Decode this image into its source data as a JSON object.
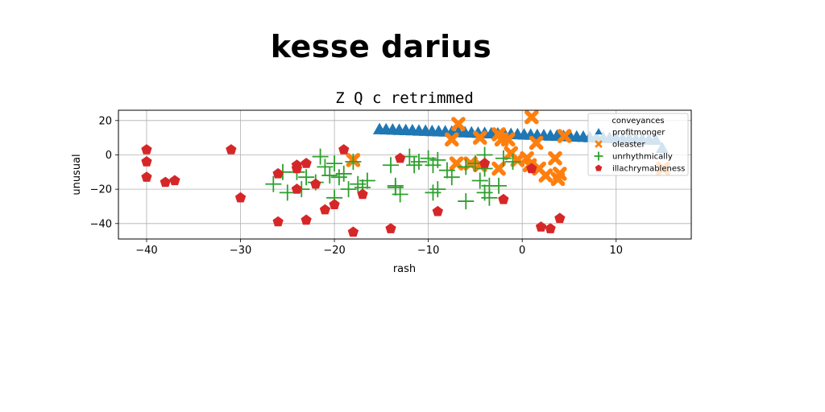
{
  "suptitle": "kesse darius",
  "chart_data": {
    "type": "scatter",
    "title": "Z Q c retrimmed",
    "xlabel": "rash",
    "ylabel": "unusual",
    "xlim": [
      -43,
      18
    ],
    "ylim": [
      -49,
      26
    ],
    "xticks": [
      -40,
      -30,
      -20,
      -10,
      0,
      10
    ],
    "yticks": [
      -40,
      -20,
      0,
      20
    ],
    "grid": true,
    "legend_title": "conveyances",
    "legend_position": "top-right",
    "series": [
      {
        "name": "profitmonger",
        "marker": "triangle",
        "color": "#1f77b4",
        "points": [
          [
            -15.2,
            14.5
          ],
          [
            -14.5,
            14.4
          ],
          [
            -13.8,
            14.3
          ],
          [
            -13.1,
            14.1
          ],
          [
            -12.4,
            14.0
          ],
          [
            -11.7,
            13.9
          ],
          [
            -11.0,
            13.7
          ],
          [
            -10.3,
            13.6
          ],
          [
            -9.6,
            13.4
          ],
          [
            -8.9,
            13.3
          ],
          [
            -8.2,
            13.2
          ],
          [
            -7.5,
            13.0
          ],
          [
            -6.8,
            12.9
          ],
          [
            -6.1,
            12.7
          ],
          [
            -5.4,
            12.6
          ],
          [
            -4.7,
            12.4
          ],
          [
            -4.0,
            12.3
          ],
          [
            -3.3,
            12.1
          ],
          [
            -2.6,
            12.0
          ],
          [
            -1.9,
            11.9
          ],
          [
            -1.2,
            11.7
          ],
          [
            -0.5,
            11.6
          ],
          [
            0.2,
            11.4
          ],
          [
            0.9,
            11.3
          ],
          [
            1.6,
            11.1
          ],
          [
            2.3,
            11.0
          ],
          [
            3.0,
            10.8
          ],
          [
            3.7,
            10.7
          ],
          [
            4.4,
            10.5
          ],
          [
            5.1,
            10.4
          ],
          [
            5.8,
            10.2
          ],
          [
            6.5,
            10.1
          ],
          [
            7.2,
            9.9
          ],
          [
            7.9,
            9.7
          ],
          [
            8.6,
            9.6
          ],
          [
            9.3,
            9.4
          ],
          [
            10.0,
            9.3
          ],
          [
            10.7,
            9.1
          ],
          [
            11.4,
            9.0
          ],
          [
            12.1,
            8.8
          ],
          [
            12.8,
            8.7
          ],
          [
            13.5,
            8.5
          ],
          [
            14.2,
            8.4
          ],
          [
            14.9,
            3.5
          ]
        ]
      },
      {
        "name": "oleaster",
        "marker": "x",
        "color": "#ff7f0e",
        "points": [
          [
            1.0,
            22
          ],
          [
            -6.8,
            18
          ],
          [
            -2.5,
            12
          ],
          [
            -7.5,
            9
          ],
          [
            -4.5,
            10
          ],
          [
            -1.5,
            9
          ],
          [
            1.5,
            7
          ],
          [
            4.5,
            11
          ],
          [
            -2.2,
            9
          ],
          [
            -1.2,
            1
          ],
          [
            0.5,
            -2
          ],
          [
            -0.5,
            -3
          ],
          [
            0.8,
            -6
          ],
          [
            1.8,
            -8
          ],
          [
            2.5,
            -12
          ],
          [
            3.5,
            -2
          ],
          [
            3.8,
            -14
          ],
          [
            4.0,
            -11
          ],
          [
            -2.5,
            -8
          ],
          [
            -4.5,
            -6
          ],
          [
            -5.5,
            -5
          ],
          [
            -7.0,
            -5
          ],
          [
            -18.0,
            -3
          ],
          [
            15.0,
            -8
          ]
        ]
      },
      {
        "name": "unrhythmically",
        "marker": "plus",
        "color": "#2ca02c",
        "points": [
          [
            -26.5,
            -17
          ],
          [
            -25.5,
            -10
          ],
          [
            -25.0,
            -22
          ],
          [
            -24.0,
            -10
          ],
          [
            -23.5,
            -20
          ],
          [
            -23.0,
            -13
          ],
          [
            -22.0,
            -16
          ],
          [
            -21.5,
            -1
          ],
          [
            -21.0,
            -7
          ],
          [
            -20.5,
            -12
          ],
          [
            -20.0,
            -5
          ],
          [
            -19.5,
            -13
          ],
          [
            -19.0,
            -11
          ],
          [
            -18.5,
            -20
          ],
          [
            -18.0,
            -4
          ],
          [
            -17.5,
            -17
          ],
          [
            -17.0,
            -19
          ],
          [
            -16.5,
            -15
          ],
          [
            -20.0,
            -25
          ],
          [
            -14.0,
            -6
          ],
          [
            -13.5,
            -18
          ],
          [
            -13.0,
            -23
          ],
          [
            -13.5,
            -19
          ],
          [
            -12.0,
            -1
          ],
          [
            -11.5,
            -6
          ],
          [
            -11.0,
            -4
          ],
          [
            -10.0,
            -2
          ],
          [
            -9.5,
            -6
          ],
          [
            -9.5,
            -22
          ],
          [
            -9.0,
            -20
          ],
          [
            -9.0,
            -3
          ],
          [
            -8.0,
            -9
          ],
          [
            -7.5,
            -13
          ],
          [
            -6.0,
            -7
          ],
          [
            -5.0,
            -5
          ],
          [
            -4.5,
            -15
          ],
          [
            -4.0,
            -8
          ],
          [
            -4.0,
            0
          ],
          [
            -3.5,
            -18
          ],
          [
            -3.5,
            -25
          ],
          [
            -2.5,
            -18
          ],
          [
            -2.0,
            -2
          ],
          [
            -1.0,
            -4
          ],
          [
            -6.0,
            -27
          ],
          [
            -4.0,
            -22
          ]
        ]
      },
      {
        "name": "illachrymableness",
        "marker": "pentagon",
        "color": "#d62728",
        "points": [
          [
            -40,
            3
          ],
          [
            -40,
            -4
          ],
          [
            -40,
            -13
          ],
          [
            -38,
            -16
          ],
          [
            -37,
            -15
          ],
          [
            -31,
            3
          ],
          [
            -30,
            -25
          ],
          [
            -26,
            -11
          ],
          [
            -26,
            -39
          ],
          [
            -24,
            -6
          ],
          [
            -24,
            -8
          ],
          [
            -24,
            -20
          ],
          [
            -23,
            -5
          ],
          [
            -23,
            -38
          ],
          [
            -22,
            -17
          ],
          [
            -21,
            -32
          ],
          [
            -20,
            -29
          ],
          [
            -19,
            3
          ],
          [
            -18,
            -45
          ],
          [
            -17,
            -23
          ],
          [
            -14,
            -43
          ],
          [
            -13,
            -2
          ],
          [
            -9,
            -33
          ],
          [
            -4,
            -5
          ],
          [
            -2,
            -26
          ],
          [
            1,
            -8
          ],
          [
            2,
            -42
          ],
          [
            3,
            -43
          ],
          [
            4,
            -37
          ]
        ]
      }
    ]
  }
}
